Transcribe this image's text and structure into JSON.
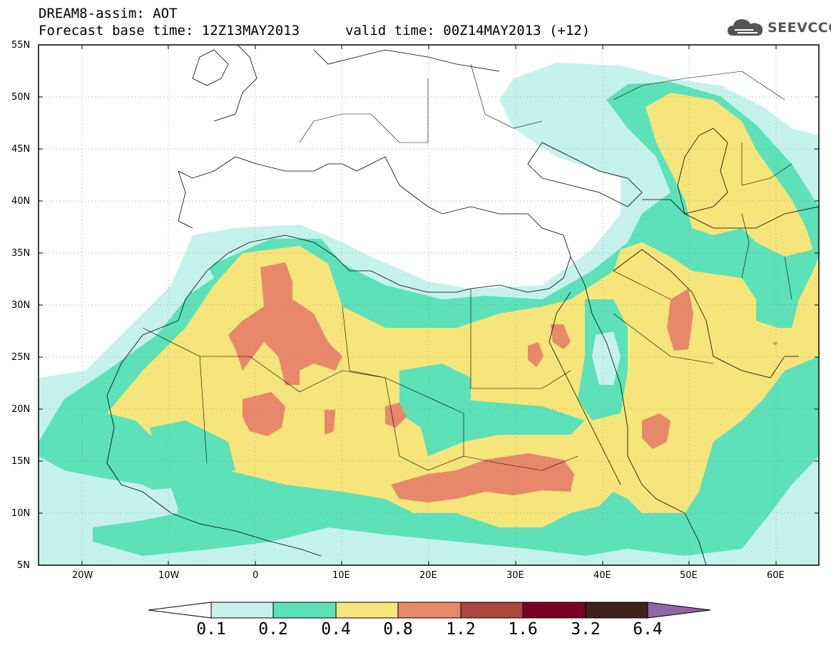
{
  "header": {
    "title": "DREAM8-assim: AOT",
    "base_time": "Forecast base time: 12Z13MAY2013",
    "valid_time": "valid time: 00Z14MAY2013 (+12)"
  },
  "logo": {
    "text": "SEEVCCC",
    "icon": "cloud-icon"
  },
  "map": {
    "lon_range": [
      -25,
      65
    ],
    "lat_range": [
      5,
      55
    ],
    "lat_ticks": [
      "55N",
      "50N",
      "45N",
      "40N",
      "35N",
      "30N",
      "25N",
      "20N",
      "15N",
      "10N",
      "5N"
    ],
    "lon_ticks": [
      "20W",
      "10W",
      "0",
      "10E",
      "20E",
      "30E",
      "40E",
      "50E",
      "60E"
    ],
    "grid": true
  },
  "colorbar": {
    "levels": [
      "0.1",
      "0.2",
      "0.4",
      "0.8",
      "1.2",
      "1.6",
      "3.2",
      "6.4"
    ],
    "colors": [
      "#ffffff",
      "#c6f2ec",
      "#5ce1b9",
      "#f6e57a",
      "#e8886a",
      "#a8483e",
      "#7a0026",
      "#3b2416",
      "#8e66a8"
    ]
  }
}
